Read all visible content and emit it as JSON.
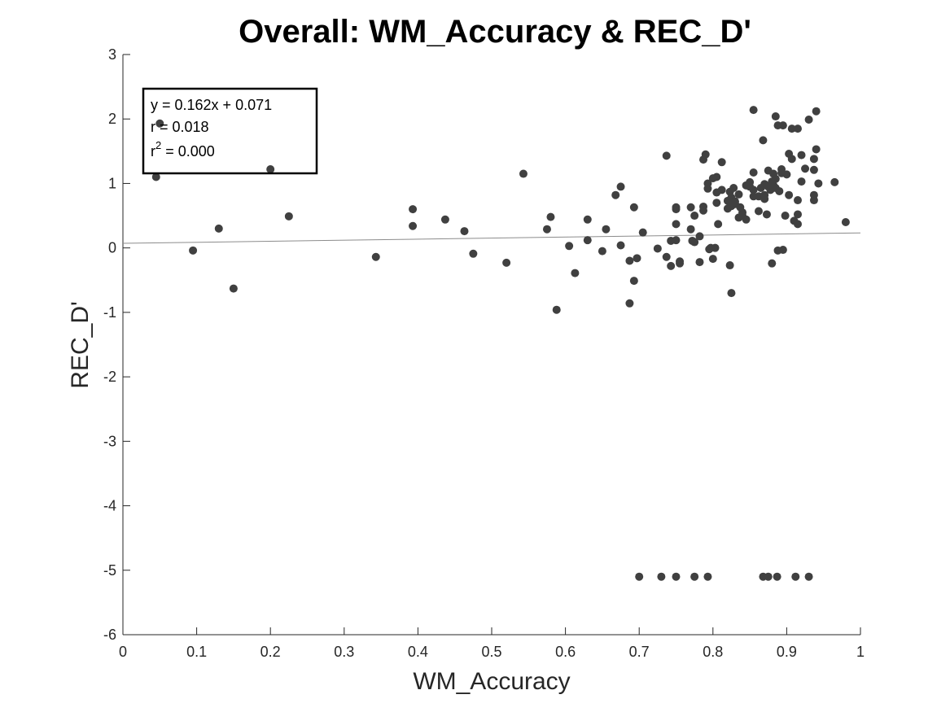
{
  "chart_data": {
    "type": "scatter",
    "title": "Overall: WM_Accuracy & REC_D'",
    "xlabel": "WM_Accuracy",
    "ylabel": "REC_D'",
    "xlim": [
      0,
      1
    ],
    "ylim": [
      -6,
      3
    ],
    "xticks": [
      "0",
      "0.1",
      "0.2",
      "0.3",
      "0.4",
      "0.5",
      "0.6",
      "0.7",
      "0.8",
      "0.9",
      "1"
    ],
    "yticks": [
      "-6",
      "-5",
      "-4",
      "-3",
      "-2",
      "-1",
      "0",
      "1",
      "2",
      "3"
    ],
    "grid": false,
    "marker_color": "#404040",
    "fit_line": {
      "slope": 0.162,
      "intercept": 0.071,
      "color": "#8c8c8c"
    },
    "annotation": {
      "equation": "y = 0.162x + 0.071",
      "r": "r = 0.018",
      "r2_prefix": "r",
      "r2_sup": "2",
      "r2_value": " = 0.000",
      "position": "top-left"
    },
    "points": [
      [
        0.05,
        1.93
      ],
      [
        0.045,
        1.1
      ],
      [
        0.095,
        -0.04
      ],
      [
        0.13,
        0.3
      ],
      [
        0.15,
        -0.63
      ],
      [
        0.2,
        1.22
      ],
      [
        0.225,
        0.49
      ],
      [
        0.343,
        -0.14
      ],
      [
        0.393,
        0.6
      ],
      [
        0.393,
        0.34
      ],
      [
        0.437,
        0.44
      ],
      [
        0.463,
        0.26
      ],
      [
        0.475,
        -0.09
      ],
      [
        0.52,
        -0.23
      ],
      [
        0.543,
        1.15
      ],
      [
        0.575,
        0.29
      ],
      [
        0.58,
        0.48
      ],
      [
        0.588,
        -0.96
      ],
      [
        0.605,
        0.03
      ],
      [
        0.613,
        -0.39
      ],
      [
        0.63,
        0.44
      ],
      [
        0.63,
        0.12
      ],
      [
        0.65,
        -0.05
      ],
      [
        0.655,
        0.29
      ],
      [
        0.668,
        0.82
      ],
      [
        0.675,
        0.95
      ],
      [
        0.675,
        0.04
      ],
      [
        0.687,
        -0.2
      ],
      [
        0.687,
        -0.86
      ],
      [
        0.693,
        0.63
      ],
      [
        0.693,
        -0.51
      ],
      [
        0.697,
        -0.16
      ],
      [
        0.705,
        0.24
      ],
      [
        0.725,
        -0.01
      ],
      [
        0.737,
        1.43
      ],
      [
        0.737,
        -0.14
      ],
      [
        0.743,
        0.11
      ],
      [
        0.743,
        -0.28
      ],
      [
        0.75,
        0.63
      ],
      [
        0.75,
        0.6
      ],
      [
        0.75,
        0.37
      ],
      [
        0.75,
        0.12
      ],
      [
        0.755,
        -0.21
      ],
      [
        0.755,
        -0.24
      ],
      [
        0.77,
        0.63
      ],
      [
        0.77,
        0.29
      ],
      [
        0.772,
        0.11
      ],
      [
        0.775,
        0.09
      ],
      [
        0.775,
        0.5
      ],
      [
        0.782,
        0.18
      ],
      [
        0.782,
        -0.22
      ],
      [
        0.787,
        1.37
      ],
      [
        0.787,
        0.64
      ],
      [
        0.787,
        0.58
      ],
      [
        0.79,
        1.45
      ],
      [
        0.793,
        1.0
      ],
      [
        0.793,
        0.92
      ],
      [
        0.795,
        -0.02
      ],
      [
        0.797,
        0.0
      ],
      [
        0.8,
        -0.17
      ],
      [
        0.8,
        1.08
      ],
      [
        0.803,
        0.0
      ],
      [
        0.805,
        1.1
      ],
      [
        0.805,
        0.86
      ],
      [
        0.805,
        0.7
      ],
      [
        0.807,
        0.37
      ],
      [
        0.812,
        1.33
      ],
      [
        0.812,
        0.9
      ],
      [
        0.82,
        0.73
      ],
      [
        0.82,
        0.61
      ],
      [
        0.823,
        0.87
      ],
      [
        0.823,
        -0.27
      ],
      [
        0.825,
        0.65
      ],
      [
        0.825,
        0.78
      ],
      [
        0.825,
        -0.7
      ],
      [
        0.828,
        0.93
      ],
      [
        0.83,
        0.68
      ],
      [
        0.83,
        0.72
      ],
      [
        0.835,
        0.83
      ],
      [
        0.835,
        0.47
      ],
      [
        0.837,
        0.63
      ],
      [
        0.84,
        0.55
      ],
      [
        0.84,
        0.5
      ],
      [
        0.845,
        0.97
      ],
      [
        0.845,
        0.44
      ],
      [
        0.85,
        1.02
      ],
      [
        0.85,
        0.95
      ],
      [
        0.855,
        2.14
      ],
      [
        0.855,
        1.17
      ],
      [
        0.855,
        0.9
      ],
      [
        0.855,
        0.8
      ],
      [
        0.862,
        0.57
      ],
      [
        0.862,
        0.8
      ],
      [
        0.865,
        0.93
      ],
      [
        0.868,
        1.67
      ],
      [
        0.87,
        0.99
      ],
      [
        0.87,
        0.76
      ],
      [
        0.87,
        0.82
      ],
      [
        0.873,
        0.52
      ],
      [
        0.875,
        1.2
      ],
      [
        0.875,
        0.95
      ],
      [
        0.878,
        0.9
      ],
      [
        0.88,
        -0.24
      ],
      [
        0.88,
        1.03
      ],
      [
        0.882,
        1.15
      ],
      [
        0.882,
        0.97
      ],
      [
        0.885,
        2.04
      ],
      [
        0.885,
        1.07
      ],
      [
        0.885,
        0.93
      ],
      [
        0.888,
        1.9
      ],
      [
        0.888,
        -0.04
      ],
      [
        0.89,
        0.88
      ],
      [
        0.893,
        1.16
      ],
      [
        0.893,
        1.22
      ],
      [
        0.895,
        1.9
      ],
      [
        0.895,
        -0.03
      ],
      [
        0.898,
        0.5
      ],
      [
        0.9,
        1.14
      ],
      [
        0.903,
        1.46
      ],
      [
        0.903,
        0.82
      ],
      [
        0.907,
        1.85
      ],
      [
        0.907,
        1.38
      ],
      [
        0.91,
        0.42
      ],
      [
        0.915,
        1.85
      ],
      [
        0.915,
        0.74
      ],
      [
        0.915,
        0.52
      ],
      [
        0.915,
        0.37
      ],
      [
        0.92,
        1.44
      ],
      [
        0.92,
        1.03
      ],
      [
        0.925,
        1.23
      ],
      [
        0.93,
        1.99
      ],
      [
        0.937,
        1.21
      ],
      [
        0.937,
        0.82
      ],
      [
        0.937,
        0.74
      ],
      [
        0.937,
        1.38
      ],
      [
        0.94,
        2.12
      ],
      [
        0.94,
        1.53
      ],
      [
        0.943,
        1.0
      ],
      [
        0.965,
        1.02
      ],
      [
        0.98,
        0.4
      ],
      [
        0.7,
        -5.1
      ],
      [
        0.73,
        -5.1
      ],
      [
        0.75,
        -5.1
      ],
      [
        0.775,
        -5.1
      ],
      [
        0.793,
        -5.1
      ],
      [
        0.868,
        -5.1
      ],
      [
        0.875,
        -5.1
      ],
      [
        0.887,
        -5.1
      ],
      [
        0.912,
        -5.1
      ],
      [
        0.93,
        -5.1
      ]
    ]
  }
}
